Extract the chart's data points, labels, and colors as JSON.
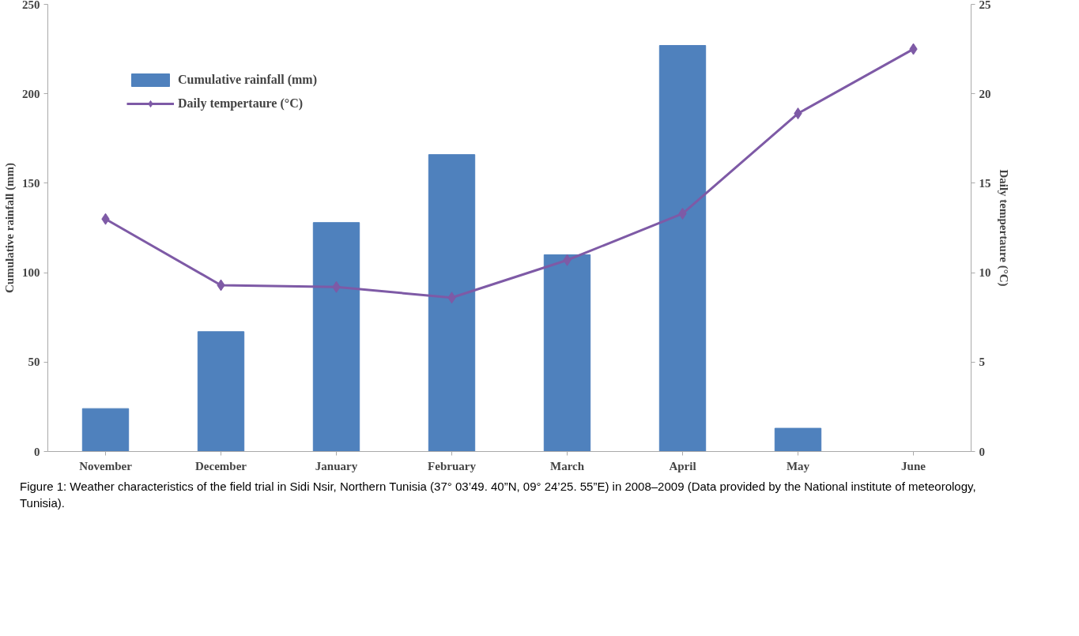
{
  "chart_data": {
    "type": "bar",
    "categories": [
      "November",
      "December",
      "January",
      "February",
      "March",
      "April",
      "May",
      "June"
    ],
    "series": [
      {
        "name": "Cumulative rainfall (mm)",
        "color": "#4f81bd",
        "values": [
          24,
          67,
          128,
          166,
          110,
          227,
          13,
          null
        ]
      },
      {
        "name": "Daily tempertaure (°C)",
        "type": "line",
        "axis": "y2",
        "color": "#7e5aa6",
        "marker": "diamond",
        "values": [
          13.0,
          9.3,
          9.2,
          8.6,
          10.7,
          13.3,
          18.9,
          22.5
        ]
      }
    ],
    "ylabel": "Cumulative rainfall (mm)",
    "y2label": "Daily tempertaure (°C)",
    "ylim": [
      0,
      250
    ],
    "yticks": [
      0,
      50,
      100,
      150,
      200,
      250
    ],
    "y2lim": [
      0,
      25
    ],
    "y2ticks": [
      0,
      5,
      10,
      15,
      20,
      25
    ],
    "grid": false,
    "legend": "top left",
    "line_style": "solid",
    "annotations": [
      "Figure 1: Weather characteristics of the field trial in Sidi Nsir, Northern Tunisia (37° 03’49. 40”N, 09° 24’25. 55”E) in 2008–2009 (Data provided by the National institute of meteorology, Tunisia)."
    ]
  }
}
